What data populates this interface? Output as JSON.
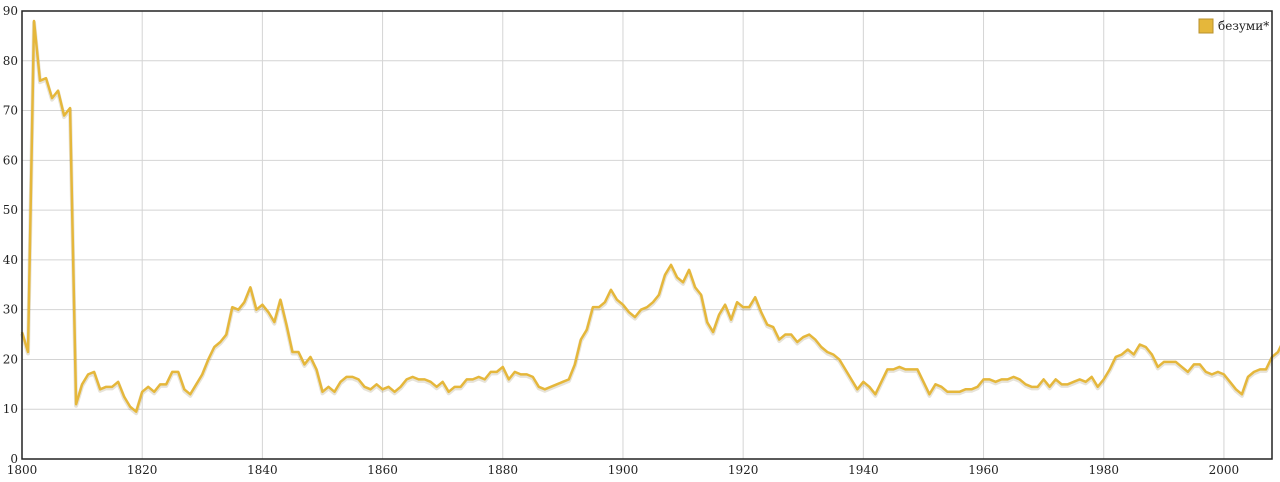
{
  "chart_data": {
    "type": "line",
    "title": "",
    "xlabel": "",
    "ylabel": "",
    "xlim": [
      1800,
      2008
    ],
    "ylim": [
      0,
      90
    ],
    "x_ticks": [
      1800,
      1820,
      1840,
      1860,
      1880,
      1900,
      1920,
      1940,
      1960,
      1980,
      2000
    ],
    "y_ticks": [
      0,
      10,
      20,
      30,
      40,
      50,
      60,
      70,
      80,
      90
    ],
    "grid": true,
    "legend_position": "top-right",
    "series": [
      {
        "name": "безуми*",
        "color": "#e5b73b",
        "x_start": 1800,
        "x_step": 1,
        "values": [
          25.5,
          21.5,
          88,
          76,
          76.5,
          72.5,
          74,
          69,
          70.5,
          11,
          15,
          17,
          17.5,
          14,
          14.5,
          14.5,
          15.5,
          12.5,
          10.5,
          9.5,
          13.5,
          14.5,
          13.5,
          15,
          15,
          17.5,
          17.5,
          14,
          13,
          15,
          17,
          20,
          22.5,
          23.5,
          25,
          30.5,
          30,
          31.5,
          34.5,
          30,
          31,
          29.5,
          27.5,
          32,
          27,
          21.5,
          21.5,
          19,
          20.5,
          18,
          13.5,
          14.5,
          13.5,
          15.5,
          16.5,
          16.5,
          16,
          14.5,
          14,
          15,
          14,
          14.5,
          13.5,
          14.5,
          16,
          16.5,
          16,
          16,
          15.5,
          14.5,
          15.5,
          13.5,
          14.5,
          14.5,
          16,
          16,
          16.5,
          16,
          17.5,
          17.5,
          18.5,
          16,
          17.5,
          17,
          17,
          16.5,
          14.5,
          14,
          14.5,
          15,
          15.5,
          16,
          19,
          24,
          26,
          30.5,
          30.5,
          31.5,
          34,
          32,
          31,
          29.5,
          28.5,
          30,
          30.5,
          31.5,
          33,
          37,
          39,
          36.5,
          35.5,
          38,
          34.5,
          33,
          27.5,
          25.5,
          29,
          31,
          28,
          31.5,
          30.5,
          30.5,
          32.5,
          29.5,
          27,
          26.5,
          24,
          25,
          25,
          23.5,
          24.5,
          25,
          24,
          22.5,
          21.5,
          21,
          20,
          18,
          16,
          14,
          15.5,
          14.5,
          13,
          15.5,
          18,
          18,
          18.5,
          18,
          18,
          18,
          15.5,
          13,
          15,
          14.5,
          13.5,
          13.5,
          13.5,
          14,
          14,
          14.5,
          16,
          16,
          15.5,
          16,
          16,
          16.5,
          16,
          15,
          14.5,
          14.5,
          16,
          14.5,
          16,
          15,
          15,
          15.5,
          16,
          15.5,
          16.5,
          14.5,
          16,
          18,
          20.5,
          21,
          22,
          21,
          23,
          22.5,
          21,
          18.5,
          19.5,
          19.5,
          19.5,
          18.5,
          17.5,
          19,
          19,
          17.5,
          17,
          17.5,
          17,
          15.5,
          14,
          13,
          16.5,
          17.5,
          18,
          18,
          20.5,
          21.5,
          24
        ]
      }
    ]
  }
}
